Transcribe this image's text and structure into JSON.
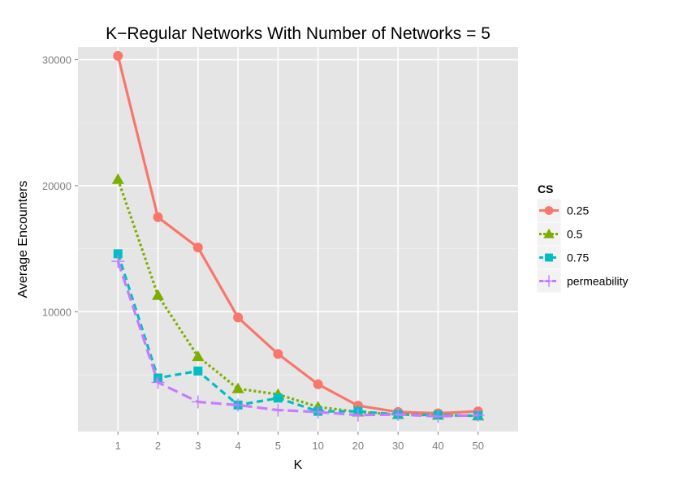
{
  "chart_data": {
    "type": "line",
    "title": "K−Regular Networks With Number of Networks = 5",
    "xlabel": "K",
    "ylabel": "Average Encounters",
    "categories": [
      "1",
      "2",
      "3",
      "4",
      "5",
      "10",
      "20",
      "30",
      "40",
      "50"
    ],
    "yticks": [
      10000,
      20000,
      30000
    ],
    "ytick_labels": [
      "10000",
      "20000",
      "30000"
    ],
    "ylim": [
      500,
      31000
    ],
    "grid": true,
    "legend": {
      "title": "CS",
      "position": "right"
    },
    "series": [
      {
        "name": "0.25",
        "color": "#F8766D",
        "marker": "circle",
        "line": "solid",
        "values": [
          30300,
          17500,
          15100,
          9550,
          6650,
          4250,
          2550,
          2050,
          1950,
          2100
        ]
      },
      {
        "name": "0.5",
        "color": "#7CAE00",
        "marker": "triangle",
        "line": "dotted",
        "values": [
          20500,
          11300,
          6450,
          3900,
          3450,
          2450,
          2050,
          1850,
          1800,
          1750
        ]
      },
      {
        "name": "0.75",
        "color": "#00BFC4",
        "marker": "square",
        "line": "dashed",
        "values": [
          14600,
          4750,
          5300,
          2600,
          3150,
          2100,
          2100,
          1850,
          1800,
          1750
        ]
      },
      {
        "name": "permeability",
        "color": "#C77CFF",
        "marker": "plus",
        "line": "longdash",
        "values": [
          14000,
          4400,
          2850,
          2600,
          2200,
          2050,
          1800,
          1850,
          1700,
          1800
        ]
      }
    ]
  }
}
